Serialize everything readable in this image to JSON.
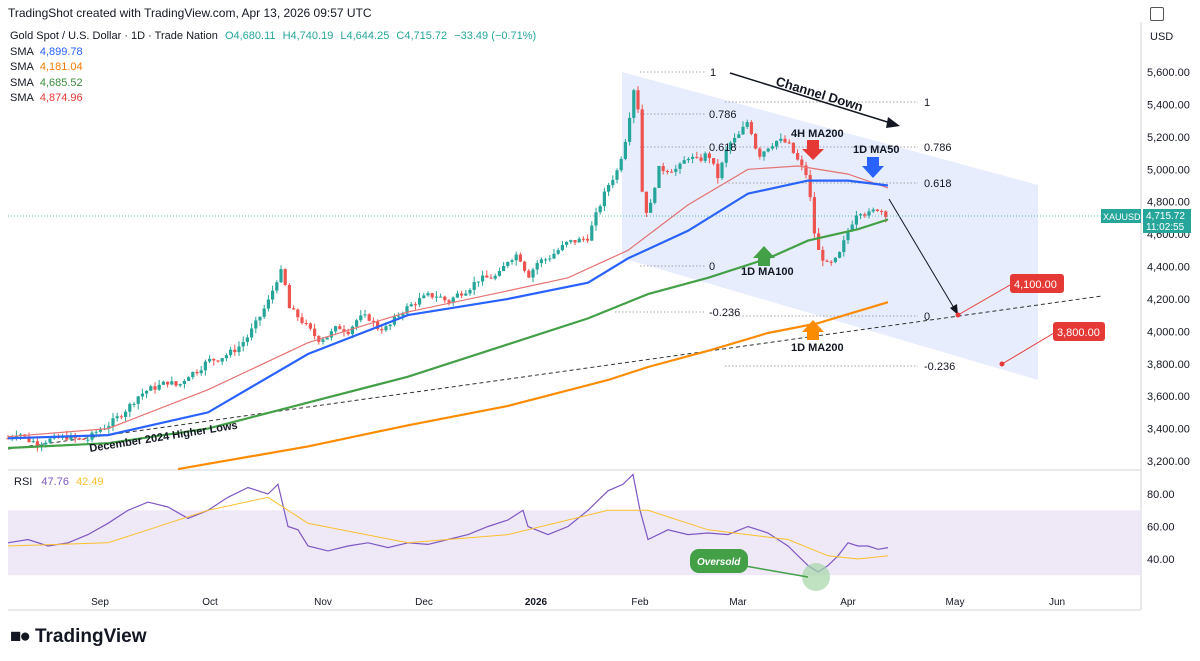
{
  "header": {
    "created_by": "TradingShot created with TradingView.com, Apr 13, 2026 09:57 UTC"
  },
  "legend": {
    "symbol": "Gold Spot / U.S. Dollar · 1D · Trade Nation",
    "ohlc": {
      "open": "O4,680.11",
      "high": "H4,740.19",
      "low": "L4,644.25",
      "close": "C4,715.72",
      "change": "−33.49 (−0.71%)"
    },
    "sma": [
      {
        "label": "SMA",
        "value": "4,899.78",
        "color": "#2962ff"
      },
      {
        "label": "SMA",
        "value": "4,181.04",
        "color": "#f57c00"
      },
      {
        "label": "SMA",
        "value": "4,685.52",
        "color": "#388e3c"
      },
      {
        "label": "SMA",
        "value": "4,874.96",
        "color": "#e53935"
      }
    ]
  },
  "currency": "USD",
  "rsi_legend": {
    "label": "RSI",
    "value": "47.76",
    "ma": "42.49"
  },
  "brand": "TradingView",
  "colors": {
    "up": "#26a69a",
    "down": "#ef5350",
    "channel": "#e3eafc"
  },
  "chart_data": {
    "type": "candlestick",
    "price_axis": {
      "range": [
        3100,
        5700
      ],
      "ticks": [
        "5,600.00",
        "5,400.00",
        "5,200.00",
        "5,000.00",
        "4,800.00",
        "4,600.00",
        "4,400.00",
        "4,200.00",
        "4,000.00",
        "3,800.00",
        "3,600.00",
        "3,400.00",
        "3,200.00"
      ],
      "tick_values": [
        5600,
        5400,
        5200,
        5000,
        4800,
        4600,
        4400,
        4200,
        4000,
        3800,
        3600,
        3400,
        3200
      ]
    },
    "time_axis": {
      "labels": [
        "Sep",
        "Oct",
        "Nov",
        "Dec",
        "2026",
        "Feb",
        "Mar",
        "Apr",
        "May",
        "Jun"
      ]
    },
    "last_price": {
      "symbol": "XAUUSD",
      "price": "4,715.72",
      "countdown": "11:02:55",
      "value": 4715.72
    },
    "price_path": [
      [
        0,
        3340
      ],
      [
        10,
        3380
      ],
      [
        20,
        3330
      ],
      [
        30,
        3310
      ],
      [
        40,
        3330
      ],
      [
        50,
        3340
      ],
      [
        60,
        3350
      ],
      [
        70,
        3330
      ],
      [
        80,
        3335
      ],
      [
        90,
        3390
      ],
      [
        100,
        3420
      ],
      [
        110,
        3470
      ],
      [
        120,
        3530
      ],
      [
        130,
        3600
      ],
      [
        140,
        3640
      ],
      [
        150,
        3660
      ],
      [
        160,
        3690
      ],
      [
        170,
        3660
      ],
      [
        180,
        3730
      ],
      [
        190,
        3760
      ],
      [
        200,
        3820
      ],
      [
        210,
        3830
      ],
      [
        220,
        3860
      ],
      [
        230,
        3900
      ],
      [
        240,
        3970
      ],
      [
        250,
        4070
      ],
      [
        260,
        4180
      ],
      [
        270,
        4340
      ],
      [
        275,
        4380
      ],
      [
        280,
        4150
      ],
      [
        290,
        4090
      ],
      [
        300,
        4020
      ],
      [
        310,
        3950
      ],
      [
        320,
        3970
      ],
      [
        330,
        4030
      ],
      [
        340,
        4000
      ],
      [
        350,
        4080
      ],
      [
        360,
        4090
      ],
      [
        370,
        4020
      ],
      [
        380,
        4020
      ],
      [
        390,
        4100
      ],
      [
        400,
        4150
      ],
      [
        410,
        4190
      ],
      [
        420,
        4220
      ],
      [
        430,
        4220
      ],
      [
        440,
        4180
      ],
      [
        450,
        4230
      ],
      [
        460,
        4260
      ],
      [
        470,
        4320
      ],
      [
        480,
        4330
      ],
      [
        490,
        4340
      ],
      [
        500,
        4440
      ],
      [
        510,
        4480
      ],
      [
        520,
        4340
      ],
      [
        530,
        4430
      ],
      [
        540,
        4450
      ],
      [
        550,
        4500
      ],
      [
        560,
        4550
      ],
      [
        570,
        4560
      ],
      [
        580,
        4580
      ],
      [
        590,
        4750
      ],
      [
        600,
        4900
      ],
      [
        610,
        5000
      ],
      [
        620,
        5250
      ],
      [
        625,
        5520
      ],
      [
        630,
        5380
      ],
      [
        633,
        4900
      ],
      [
        640,
        4700
      ],
      [
        650,
        5000
      ],
      [
        660,
        5000
      ],
      [
        670,
        5000
      ],
      [
        680,
        5080
      ],
      [
        690,
        5050
      ],
      [
        700,
        5100
      ],
      [
        710,
        4950
      ],
      [
        720,
        5150
      ],
      [
        730,
        5200
      ],
      [
        740,
        5300
      ],
      [
        745,
        5200
      ],
      [
        750,
        5080
      ],
      [
        760,
        5140
      ],
      [
        770,
        5180
      ],
      [
        780,
        5160
      ],
      [
        790,
        5050
      ],
      [
        800,
        4950
      ],
      [
        805,
        4650
      ],
      [
        810,
        4500
      ],
      [
        820,
        4400
      ],
      [
        830,
        4450
      ],
      [
        840,
        4620
      ],
      [
        850,
        4750
      ],
      [
        860,
        4720
      ],
      [
        870,
        4760
      ],
      [
        880,
        4715
      ]
    ],
    "indicators": [
      {
        "name": "4H MA200",
        "color": "#e57373",
        "points": [
          [
            0,
            3350
          ],
          [
            100,
            3400
          ],
          [
            200,
            3640
          ],
          [
            300,
            3930
          ],
          [
            400,
            4120
          ],
          [
            500,
            4250
          ],
          [
            560,
            4330
          ],
          [
            620,
            4500
          ],
          [
            680,
            4780
          ],
          [
            740,
            5000
          ],
          [
            790,
            5020
          ],
          [
            840,
            4970
          ],
          [
            880,
            4885
          ]
        ]
      },
      {
        "name": "1D MA50",
        "color": "#2962ff",
        "points": [
          [
            0,
            3340
          ],
          [
            100,
            3360
          ],
          [
            200,
            3500
          ],
          [
            300,
            3860
          ],
          [
            400,
            4100
          ],
          [
            500,
            4200
          ],
          [
            580,
            4300
          ],
          [
            620,
            4450
          ],
          [
            680,
            4620
          ],
          [
            740,
            4850
          ],
          [
            800,
            4930
          ],
          [
            840,
            4930
          ],
          [
            880,
            4900
          ]
        ]
      },
      {
        "name": "1D MA100",
        "color": "#43a047",
        "points": [
          [
            0,
            3280
          ],
          [
            100,
            3310
          ],
          [
            200,
            3400
          ],
          [
            300,
            3560
          ],
          [
            400,
            3720
          ],
          [
            500,
            3920
          ],
          [
            580,
            4080
          ],
          [
            640,
            4230
          ],
          [
            700,
            4330
          ],
          [
            760,
            4450
          ],
          [
            800,
            4560
          ],
          [
            850,
            4630
          ],
          [
            880,
            4690
          ]
        ]
      },
      {
        "name": "1D MA200",
        "color": "#fb8c00",
        "points": [
          [
            170,
            3150
          ],
          [
            300,
            3290
          ],
          [
            400,
            3420
          ],
          [
            500,
            3540
          ],
          [
            600,
            3700
          ],
          [
            640,
            3780
          ],
          [
            700,
            3880
          ],
          [
            760,
            3990
          ],
          [
            810,
            4050
          ],
          [
            880,
            4180
          ]
        ]
      }
    ],
    "annotations": {
      "channel_label": "Channel Down",
      "higher_lows_label": "December 2024 Higher Lows",
      "ma_labels": [
        "4H MA200",
        "1D MA50",
        "1D MA100",
        "1D MA200"
      ],
      "fib_left": [
        "1",
        "0.786",
        "0.618",
        "0",
        "-0.236"
      ],
      "fib_right": [
        "1",
        "0.786",
        "0.618",
        "0",
        "-0.236"
      ],
      "targets": [
        "4,100.00",
        "3,800.00"
      ],
      "oversold": "Oversold"
    },
    "rsi": {
      "ticks": [
        "80.00",
        "60.00",
        "40.00"
      ],
      "tick_values": [
        80,
        60,
        40
      ],
      "range": [
        20,
        100
      ],
      "band": [
        30,
        70
      ],
      "values": [
        [
          0,
          50
        ],
        [
          20,
          52
        ],
        [
          40,
          48
        ],
        [
          60,
          50
        ],
        [
          80,
          55
        ],
        [
          100,
          62
        ],
        [
          120,
          70
        ],
        [
          140,
          75
        ],
        [
          160,
          72
        ],
        [
          180,
          65
        ],
        [
          200,
          70
        ],
        [
          220,
          78
        ],
        [
          240,
          84
        ],
        [
          260,
          80
        ],
        [
          270,
          86
        ],
        [
          280,
          60
        ],
        [
          290,
          58
        ],
        [
          300,
          48
        ],
        [
          320,
          45
        ],
        [
          340,
          48
        ],
        [
          360,
          50
        ],
        [
          380,
          47
        ],
        [
          400,
          50
        ],
        [
          420,
          49
        ],
        [
          440,
          52
        ],
        [
          460,
          55
        ],
        [
          480,
          60
        ],
        [
          500,
          64
        ],
        [
          515,
          70
        ],
        [
          520,
          60
        ],
        [
          540,
          55
        ],
        [
          560,
          60
        ],
        [
          580,
          70
        ],
        [
          600,
          82
        ],
        [
          615,
          86
        ],
        [
          625,
          92
        ],
        [
          632,
          70
        ],
        [
          640,
          52
        ],
        [
          660,
          58
        ],
        [
          680,
          55
        ],
        [
          700,
          56
        ],
        [
          720,
          55
        ],
        [
          740,
          60
        ],
        [
          760,
          56
        ],
        [
          780,
          48
        ],
        [
          800,
          36
        ],
        [
          810,
          32
        ],
        [
          820,
          36
        ],
        [
          830,
          42
        ],
        [
          840,
          50
        ],
        [
          850,
          48
        ],
        [
          860,
          48
        ],
        [
          870,
          46
        ],
        [
          880,
          47
        ]
      ],
      "ma": [
        [
          0,
          48
        ],
        [
          100,
          50
        ],
        [
          200,
          70
        ],
        [
          260,
          78
        ],
        [
          300,
          62
        ],
        [
          400,
          50
        ],
        [
          500,
          55
        ],
        [
          600,
          70
        ],
        [
          640,
          70
        ],
        [
          700,
          58
        ],
        [
          780,
          52
        ],
        [
          820,
          42
        ],
        [
          850,
          40
        ],
        [
          880,
          42
        ]
      ]
    }
  }
}
